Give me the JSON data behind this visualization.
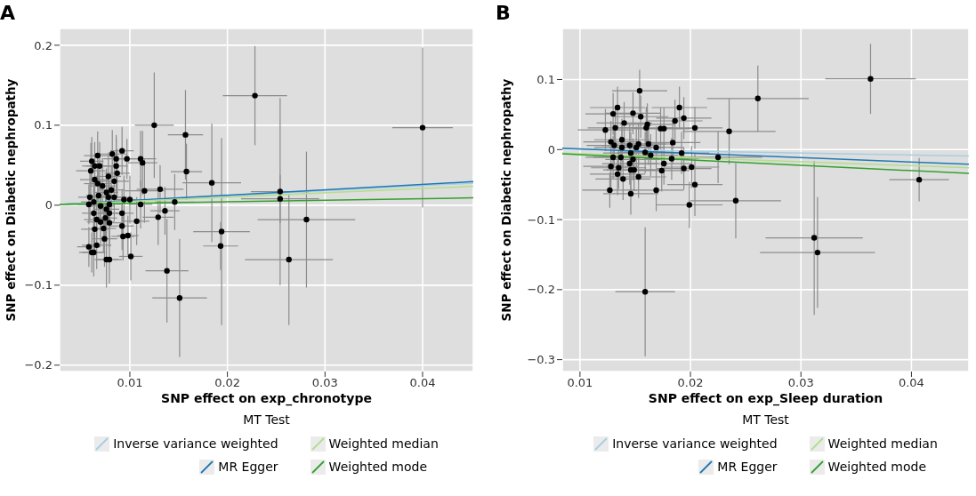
{
  "chart_data": [
    {
      "type": "scatter",
      "title": "A",
      "xlabel": "SNP effect on exp_chronotype",
      "ylabel": "SNP effect on Diabetic nephropathy",
      "legend_title": "MT Test",
      "legend": "bottom",
      "grid": true,
      "marker": "circle",
      "line_style": "solid",
      "xlim": [
        0.0028,
        0.0452
      ],
      "xticks": [
        0.01,
        0.02,
        0.03,
        0.04
      ],
      "ylim": [
        -0.208,
        0.221
      ],
      "yticks": [
        {
          "value": -0.2,
          "label": "−0.2"
        },
        {
          "value": -0.1,
          "label": "−0.1"
        },
        0,
        0.1,
        0.2
      ],
      "series": [
        {
          "type": "scatter",
          "color": "#000000",
          "x": [
            0.02282,
            0.04,
            0.0125,
            0.0157,
            0.0158,
            0.0184,
            0.0254,
            0.0254,
            0.0281,
            0.0263,
            0.0194,
            0.0193,
            0.0138,
            0.0151,
            0.0131,
            0.0115,
            0.0136,
            0.0129,
            0.0146,
            0.0111,
            0.0113,
            0.0111,
            0.0107,
            0.0101,
            0.01,
            0.0094,
            0.0092,
            0.0097,
            0.0092,
            0.0092,
            0.0093,
            0.0098,
            0.0076,
            0.0079,
            0.0074,
            0.0066,
            0.0058,
            0.0061,
            0.0063,
            0.0064,
            0.0067,
            0.0061,
            0.006,
            0.0064,
            0.0069,
            0.0082,
            0.0086,
            0.0086,
            0.0087,
            0.0084,
            0.0078,
            0.0081,
            0.0076,
            0.0072,
            0.0067,
            0.0064,
            0.0068,
            0.0059,
            0.0058,
            0.0063,
            0.007,
            0.0076,
            0.0079,
            0.0078,
            0.0063,
            0.0066,
            0.007,
            0.0075,
            0.0079,
            0.0073,
            0.0079,
            0.0084
          ],
          "values": [
            0.137,
            0.097,
            0.1,
            0.088,
            0.042,
            0.028,
            0.017,
            0.008,
            -0.018,
            -0.068,
            -0.033,
            -0.051,
            -0.082,
            -0.116,
            0.02,
            0.018,
            -0.007,
            -0.015,
            0.004,
            0.058,
            0.053,
            0.001,
            -0.02,
            -0.064,
            0.007,
            0.007,
            0.068,
            0.058,
            -0.01,
            -0.026,
            -0.039,
            -0.038,
            -0.068,
            -0.068,
            -0.042,
            -0.05,
            -0.052,
            -0.059,
            -0.059,
            -0.03,
            0.062,
            0.055,
            0.043,
            0.049,
            0.049,
            0.064,
            0.058,
            0.049,
            0.04,
            0.03,
            0.036,
            0.019,
            0.016,
            0.024,
            0.027,
            0.032,
            0.012,
            0.01,
            0.001,
            0.004,
            -0.001,
            -0.005,
            0.001,
            0.01,
            -0.01,
            -0.018,
            -0.021,
            -0.016,
            -0.022,
            -0.029,
            -0.01,
            0.01
          ],
          "xerrors": [
            0.0033,
            0.0031,
            0.002,
            0.0018,
            0.0016,
            0.003,
            0.003,
            0.004,
            0.005,
            0.0045,
            0.0029,
            0.0018,
            0.0022,
            0.0028,
            0.0024,
            0.002,
            0.0015,
            0.0016,
            0.002,
            0.0016,
            0.0015,
            0.0012,
            0.0013,
            0.0012,
            0.0015,
            0.0013,
            0.0012,
            0.0015,
            0.0012,
            0.0012,
            0.0012,
            0.0011,
            0.0012,
            0.0013,
            0.0013,
            0.0015,
            0.0012,
            0.0013,
            0.0012,
            0.0014,
            0.0014,
            0.0012,
            0.0015,
            0.0013,
            0.0014,
            0.0015,
            0.0013,
            0.0012,
            0.0013,
            0.0015,
            0.0013,
            0.0014,
            0.0012,
            0.0013,
            0.0014,
            0.0015,
            0.0013,
            0.0012,
            0.0012,
            0.0013,
            0.0014,
            0.0013,
            0.0012,
            0.0013,
            0.0012,
            0.0013,
            0.0014,
            0.0012,
            0.0013,
            0.0013,
            0.0012,
            0.0013
          ],
          "errors": [
            0.062,
            0.1,
            0.066,
            0.056,
            0.035,
            0.074,
            0.117,
            0.03,
            0.085,
            0.082,
            0.117,
            0.03,
            0.065,
            0.074,
            0.03,
            0.04,
            0.03,
            0.035,
            0.035,
            0.035,
            0.04,
            0.03,
            0.03,
            0.03,
            0.03,
            0.03,
            0.03,
            0.025,
            0.03,
            0.03,
            0.03,
            0.025,
            0.035,
            0.03,
            0.035,
            0.03,
            0.025,
            0.025,
            0.03,
            0.03,
            0.03,
            0.03,
            0.035,
            0.03,
            0.03,
            0.03,
            0.03,
            0.035,
            0.03,
            0.03,
            0.03,
            0.03,
            0.03,
            0.035,
            0.03,
            0.03,
            0.03,
            0.03,
            0.025,
            0.03,
            0.03,
            0.03,
            0.03,
            0.03,
            0.03,
            0.03,
            0.03,
            0.03,
            0.03,
            0.03,
            0.03,
            0.03
          ]
        },
        {
          "type": "line",
          "name": "Inverse variance weighted",
          "color": "#a6cee3",
          "marker": "none",
          "x": [
            0.0028,
            0.0452
          ],
          "values": [
            0.001,
            0.0277
          ]
        },
        {
          "type": "line",
          "name": "MR Egger",
          "color": "#1f78b4",
          "marker": "none",
          "x": [
            0.0028,
            0.0452
          ],
          "values": [
            0.001,
            0.0295
          ]
        },
        {
          "type": "line",
          "name": "Weighted median",
          "color": "#b2df8a",
          "marker": "none",
          "x": [
            0.0028,
            0.0452
          ],
          "values": [
            0.001,
            0.0236
          ]
        },
        {
          "type": "line",
          "name": "Weighted mode",
          "color": "#33a02c",
          "marker": "none",
          "x": [
            0.0028,
            0.0452
          ],
          "values": [
            0.001,
            0.0092
          ]
        }
      ]
    },
    {
      "type": "scatter",
      "title": "B",
      "xlabel": "SNP effect on exp_Sleep duration",
      "ylabel": "SNP effect on Diabetic nephropathy",
      "legend_title": "MT Test",
      "legend": "bottom",
      "grid": true,
      "marker": "circle",
      "line_style": "solid",
      "xlim": [
        0.0084,
        0.0452
      ],
      "xticks": [
        0.01,
        0.02,
        0.03,
        0.04
      ],
      "ylim": [
        -0.317,
        0.173
      ],
      "yticks": [
        {
          "value": -0.3,
          "label": "−0.3"
        },
        {
          "value": -0.2,
          "label": "−0.2"
        },
        {
          "value": -0.1,
          "label": "−0.1"
        },
        0,
        0.1
      ],
      "series": [
        {
          "type": "scatter",
          "color": "#000000",
          "x": [
            0.0363,
            0.0261,
            0.0235,
            0.0225,
            0.0241,
            0.0407,
            0.0312,
            0.0315,
            0.0159,
            0.0199,
            0.0204,
            0.0204,
            0.0201,
            0.0194,
            0.0192,
            0.0194,
            0.019,
            0.0186,
            0.0184,
            0.0183,
            0.0176,
            0.0174,
            0.0176,
            0.0173,
            0.0169,
            0.0169,
            0.0164,
            0.0162,
            0.016,
            0.0161,
            0.0159,
            0.0154,
            0.0155,
            0.0153,
            0.0151,
            0.0148,
            0.0145,
            0.0146,
            0.0148,
            0.0145,
            0.0146,
            0.0149,
            0.0153,
            0.0146,
            0.014,
            0.0138,
            0.0138,
            0.0137,
            0.0139,
            0.0135,
            0.0134,
            0.0134,
            0.0132,
            0.013,
            0.0131,
            0.013,
            0.0128,
            0.0128,
            0.0127,
            0.0123
          ],
          "values": [
            0.101,
            0.073,
            0.026,
            -0.011,
            -0.073,
            -0.043,
            -0.126,
            -0.147,
            -0.203,
            -0.079,
            -0.05,
            0.031,
            -0.025,
            -0.027,
            -0.005,
            0.045,
            0.06,
            0.041,
            0.01,
            -0.013,
            -0.02,
            -0.03,
            0.03,
            0.03,
            0.003,
            -0.058,
            -0.008,
            0.008,
            0.031,
            0.036,
            -0.004,
            0.084,
            0.047,
            0.008,
            0.003,
            0.052,
            0.006,
            -0.005,
            -0.014,
            -0.02,
            -0.029,
            -0.029,
            -0.039,
            -0.063,
            0.038,
            0.003,
            0.014,
            -0.011,
            -0.042,
            -0.026,
            -0.035,
            0.06,
            0.031,
            0.051,
            0.006,
            -0.011,
            0.011,
            -0.024,
            -0.058,
            0.028
          ],
          "xerrors": [
            0.0041,
            0.0046,
            0.0042,
            0.004,
            0.0041,
            0.0027,
            0.0044,
            0.0052,
            0.0027,
            0.003,
            0.0025,
            0.0025,
            0.0025,
            0.0025,
            0.0025,
            0.0025,
            0.0025,
            0.0025,
            0.0025,
            0.0025,
            0.0025,
            0.0025,
            0.0025,
            0.0025,
            0.0025,
            0.0025,
            0.0025,
            0.0025,
            0.0025,
            0.0025,
            0.0025,
            0.0025,
            0.0025,
            0.0025,
            0.0025,
            0.0025,
            0.0025,
            0.0025,
            0.0025,
            0.0025,
            0.0025,
            0.0025,
            0.0025,
            0.0025,
            0.0025,
            0.0025,
            0.0025,
            0.0025,
            0.0025,
            0.0025,
            0.0025,
            0.0025,
            0.0025,
            0.0025,
            0.0025,
            0.0025,
            0.0025,
            0.0025,
            0.0025,
            0.0025
          ],
          "errors": [
            0.05,
            0.047,
            0.047,
            0.037,
            0.054,
            0.031,
            0.11,
            0.079,
            0.092,
            0.033,
            0.045,
            0.03,
            0.03,
            0.03,
            0.03,
            0.03,
            0.03,
            0.03,
            0.03,
            0.03,
            0.03,
            0.03,
            0.03,
            0.03,
            0.03,
            0.03,
            0.03,
            0.03,
            0.03,
            0.03,
            0.03,
            0.03,
            0.03,
            0.03,
            0.03,
            0.03,
            0.03,
            0.03,
            0.03,
            0.03,
            0.03,
            0.03,
            0.03,
            0.03,
            0.03,
            0.03,
            0.03,
            0.03,
            0.03,
            0.03,
            0.03,
            0.03,
            0.03,
            0.03,
            0.03,
            0.03,
            0.03,
            0.03,
            0.025,
            0.03
          ]
        },
        {
          "type": "line",
          "name": "Inverse variance weighted",
          "color": "#a6cee3",
          "marker": "none",
          "x": [
            0.0084,
            0.0452
          ],
          "values": [
            0.001,
            -0.0093
          ]
        },
        {
          "type": "line",
          "name": "MR Egger",
          "color": "#1f78b4",
          "marker": "none",
          "x": [
            0.0084,
            0.0452
          ],
          "values": [
            0.002,
            -0.021
          ]
        },
        {
          "type": "line",
          "name": "Weighted median",
          "color": "#b2df8a",
          "marker": "none",
          "x": [
            0.0084,
            0.0452
          ],
          "values": [
            -0.005,
            -0.026
          ]
        },
        {
          "type": "line",
          "name": "Weighted mode",
          "color": "#33a02c",
          "marker": "none",
          "x": [
            0.0084,
            0.0452
          ],
          "values": [
            -0.006,
            -0.034
          ]
        }
      ]
    }
  ]
}
